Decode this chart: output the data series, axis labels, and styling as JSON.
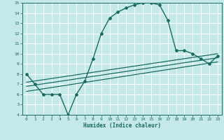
{
  "xlabel": "Humidex (Indice chaleur)",
  "xlim": [
    -0.5,
    23.5
  ],
  "ylim": [
    4,
    15
  ],
  "xticks": [
    0,
    1,
    2,
    3,
    4,
    5,
    6,
    7,
    8,
    9,
    10,
    11,
    12,
    13,
    14,
    15,
    16,
    17,
    18,
    19,
    20,
    21,
    22,
    23
  ],
  "yticks": [
    4,
    5,
    6,
    7,
    8,
    9,
    10,
    11,
    12,
    13,
    14,
    15
  ],
  "bg_color": "#c5e8e8",
  "grid_color": "#ffffff",
  "line_color": "#1a6b60",
  "main_curve_x": [
    0,
    1,
    2,
    3,
    4,
    5,
    6,
    7,
    8,
    9,
    10,
    11,
    12,
    13,
    14,
    15,
    16,
    17,
    18,
    19,
    20,
    21,
    22,
    23
  ],
  "main_curve_y": [
    8,
    7,
    6,
    6,
    6,
    4,
    6,
    7.3,
    9.5,
    12,
    13.5,
    14.1,
    14.5,
    14.8,
    15,
    15,
    14.8,
    13.3,
    10.3,
    10.3,
    10,
    9.5,
    9,
    9.8
  ],
  "reg_lines": [
    {
      "x": [
        0,
        23
      ],
      "y": [
        6.3,
        9.2
      ]
    },
    {
      "x": [
        0,
        23
      ],
      "y": [
        6.8,
        9.6
      ]
    },
    {
      "x": [
        0,
        23
      ],
      "y": [
        7.2,
        10.0
      ]
    }
  ]
}
